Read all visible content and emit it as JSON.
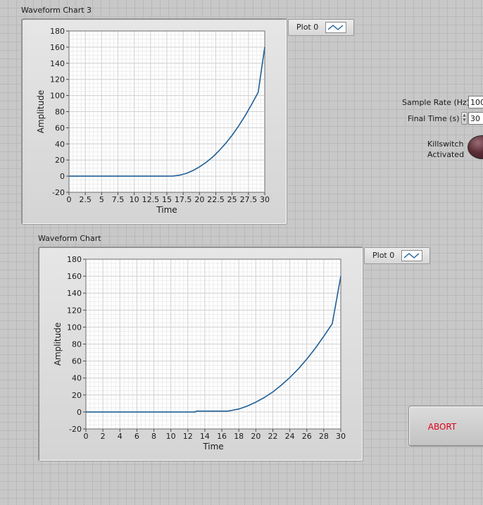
{
  "charts": [
    {
      "title": "Waveform Chart 3",
      "legend_label": "Plot 0",
      "xlabel": "Time",
      "ylabel": "Amplitude",
      "xticks": [
        "0",
        "2.5",
        "5",
        "7.5",
        "10",
        "12.5",
        "15",
        "17.5",
        "20",
        "22.5",
        "25",
        "27.5",
        "30"
      ],
      "yticks": [
        "180",
        "160",
        "140",
        "120",
        "100",
        "80",
        "60",
        "40",
        "20",
        "0",
        "-20"
      ]
    },
    {
      "title": "Waveform Chart",
      "legend_label": "Plot 0",
      "xlabel": "Time",
      "ylabel": "Amplitude",
      "xticks": [
        "0",
        "2",
        "4",
        "6",
        "8",
        "10",
        "12",
        "14",
        "16",
        "18",
        "20",
        "22",
        "24",
        "26",
        "28",
        "30"
      ],
      "yticks": [
        "180",
        "160",
        "140",
        "120",
        "100",
        "80",
        "60",
        "40",
        "20",
        "0",
        "-20"
      ]
    }
  ],
  "controls": {
    "sample_rate": {
      "label": "Sample Rate (Hz)",
      "value": "100"
    },
    "final_time": {
      "label": "Final Time (s)",
      "value": "30"
    },
    "killswitch": {
      "label_line1": "Killswitch",
      "label_line2": "Activated",
      "state": "off"
    },
    "abort": {
      "label": "ABORT"
    }
  },
  "colors": {
    "plot_line": "#1f5f96",
    "abort_text": "#e0001b",
    "led_off": "#5a2d36"
  },
  "chart_data": [
    {
      "type": "line",
      "title": "",
      "xlabel": "Time",
      "ylabel": "Amplitude",
      "xlim": [
        0,
        30
      ],
      "ylim": [
        -20,
        180
      ],
      "grid": true,
      "legend": "top-right",
      "series": [
        {
          "name": "Plot 0",
          "x": [
            0,
            15,
            16,
            17,
            18,
            19,
            20,
            21,
            22,
            23,
            24,
            25,
            26,
            27,
            28,
            29,
            30
          ],
          "y": [
            0,
            0,
            0.2,
            1.3,
            3.5,
            7,
            11.5,
            17,
            23.6,
            31.5,
            40.5,
            50.7,
            62.2,
            75,
            89.2,
            104,
            160
          ]
        }
      ]
    },
    {
      "type": "line",
      "title": "",
      "xlabel": "Time",
      "ylabel": "Amplitude",
      "xlim": [
        0,
        30
      ],
      "ylim": [
        -20,
        180
      ],
      "grid": true,
      "legend": "top-right",
      "series": [
        {
          "name": "Plot 0",
          "x": [
            0,
            12.9,
            13,
            16.7,
            17,
            18,
            19,
            20,
            21,
            22,
            23,
            24,
            25,
            26,
            27,
            28,
            29,
            30
          ],
          "y": [
            0,
            0,
            1,
            1,
            1.5,
            3.5,
            7,
            11.5,
            17,
            23.6,
            31.5,
            40.5,
            50.7,
            62.2,
            75,
            89.2,
            104,
            160
          ]
        }
      ]
    }
  ]
}
